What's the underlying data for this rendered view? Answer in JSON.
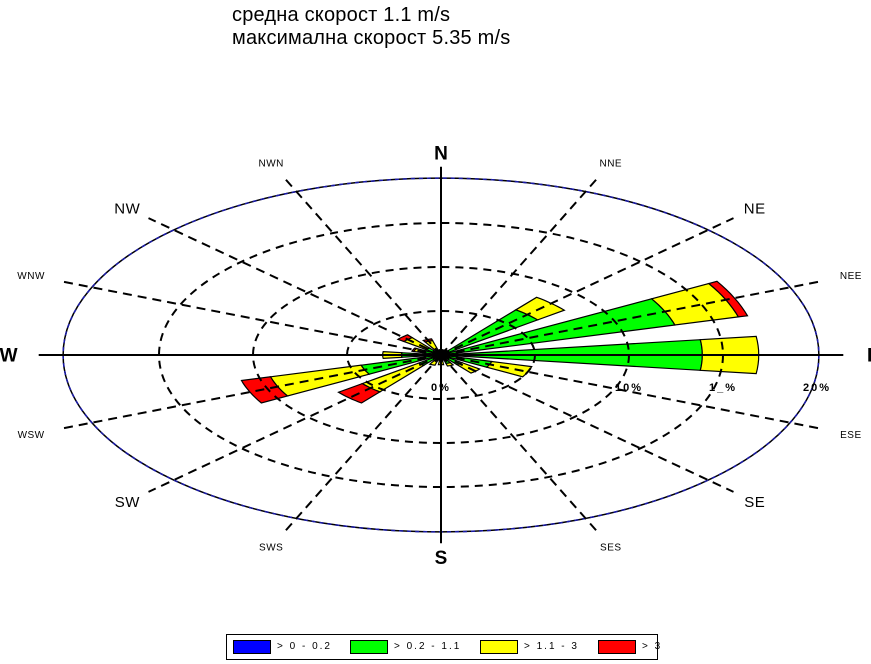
{
  "header": {
    "line1": "средна скорост 1.1 m/s",
    "line2": "максимална скорост 5.35 m/s"
  },
  "colors": {
    "bin1": "#0000ff",
    "bin2": "#00ff00",
    "bin3": "#ffff00",
    "bin4": "#ff0000",
    "outer_ring": "#1a1aa8"
  },
  "chart_data": {
    "type": "wind-rose",
    "directions": [
      "N",
      "NNE",
      "NE",
      "NEE",
      "E",
      "ESE",
      "SE",
      "SES",
      "S",
      "SWS",
      "SW",
      "WSW",
      "W",
      "WNW",
      "NW",
      "NWN"
    ],
    "radial_ticks": [
      "0%",
      "10%",
      "1_%",
      "20%"
    ],
    "radial_tick_values": [
      0,
      10,
      15,
      20
    ],
    "series": [
      {
        "name": "> 0 - 0.2",
        "values": [
          0.2,
          0.2,
          0.3,
          0.4,
          0.4,
          0.3,
          0.2,
          0.2,
          0.2,
          0.2,
          0.3,
          0.4,
          0.3,
          0.2,
          0.2,
          0.2
        ]
      },
      {
        "name": "> 0.2 - 1.1",
        "values": [
          0.3,
          0.3,
          6.2,
          12.5,
          13.5,
          2.5,
          1.2,
          0.8,
          0.5,
          0.5,
          1.2,
          4.0,
          1.8,
          0.8,
          0.8,
          0.5
        ]
      },
      {
        "name": "> 1.1 - 3",
        "values": [
          0.1,
          0.1,
          1.8,
          3.5,
          3.0,
          2.2,
          1.2,
          0.3,
          0.4,
          0.5,
          3.8,
          5.0,
          1.0,
          0.5,
          1.5,
          1.0
        ]
      },
      {
        "name": "> 3",
        "values": [
          0,
          0,
          0,
          0.5,
          0,
          0,
          0,
          0,
          0,
          0,
          1.6,
          1.6,
          0,
          0.1,
          0.4,
          0.2
        ]
      }
    ]
  },
  "legend": {
    "items": [
      {
        "label": "> 0 - 0.2"
      },
      {
        "label": "> 0.2 - 1.1"
      },
      {
        "label": "> 1.1 - 3"
      },
      {
        "label": "> 3"
      }
    ]
  }
}
